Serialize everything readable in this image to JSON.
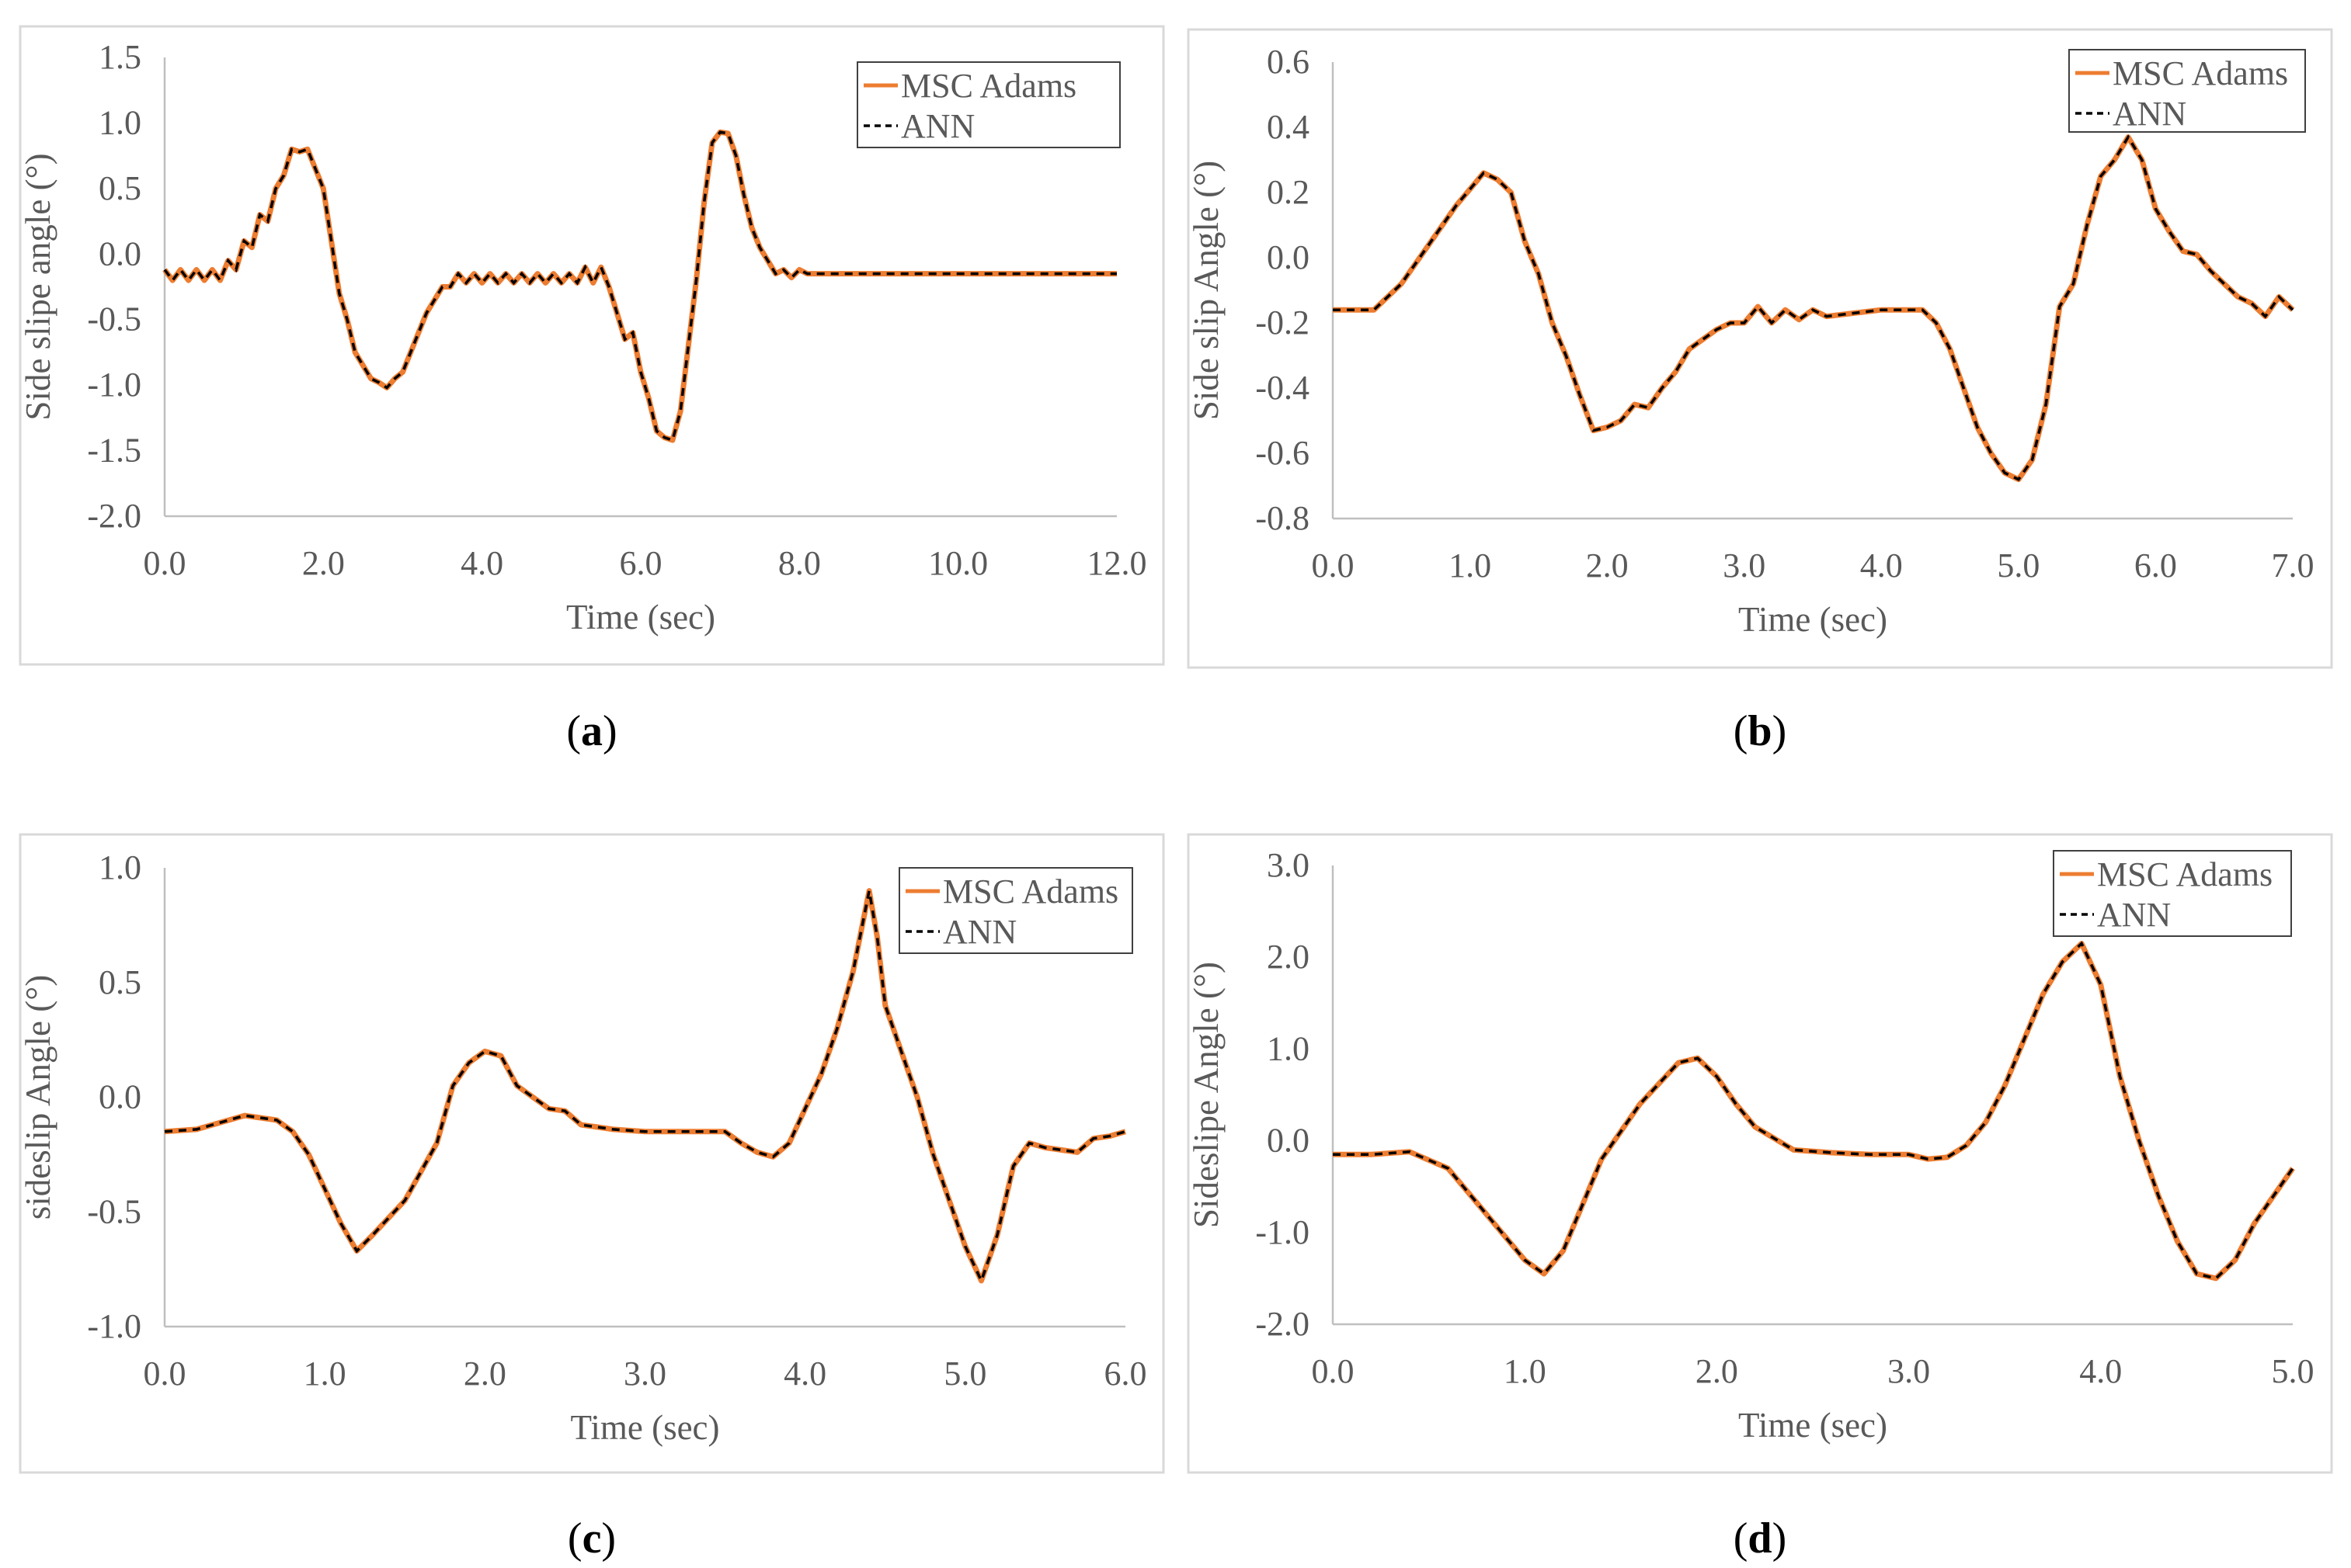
{
  "colors": {
    "adams": "#ED7D31",
    "ann": "#000000",
    "axis": "#BFBFBF",
    "frame": "#D9D9D9",
    "text": "#595959"
  },
  "panels": [
    {
      "caption": "(a)",
      "caption_letter": "a",
      "chart_data": {
        "type": "line",
        "xlabel": "Time (sec)",
        "ylabel": "Side slipe angle (°)",
        "xlim": [
          0,
          12
        ],
        "ylim": [
          -2,
          1.5
        ],
        "xticks": [
          "0.0",
          "2.0",
          "4.0",
          "6.0",
          "8.0",
          "10.0",
          "12.0"
        ],
        "yticks": [
          "-2.0",
          "-1.5",
          "-1.0",
          "-0.5",
          "0.0",
          "0.5",
          "1.0",
          "1.5"
        ],
        "legend_position": "top-right",
        "series": [
          {
            "name": "MSC Adams",
            "style": "solid"
          },
          {
            "name": "ANN",
            "style": "dashed"
          }
        ],
        "x": [
          0,
          0.1,
          0.2,
          0.3,
          0.4,
          0.5,
          0.6,
          0.7,
          0.8,
          0.9,
          1.0,
          1.1,
          1.2,
          1.3,
          1.4,
          1.5,
          1.6,
          1.7,
          1.8,
          1.9,
          2.0,
          2.1,
          2.2,
          2.3,
          2.4,
          2.5,
          2.6,
          2.7,
          2.8,
          2.9,
          3.0,
          3.1,
          3.2,
          3.3,
          3.4,
          3.5,
          3.6,
          3.7,
          3.8,
          3.9,
          4.0,
          4.1,
          4.2,
          4.3,
          4.4,
          4.5,
          4.6,
          4.7,
          4.8,
          4.9,
          5.0,
          5.1,
          5.2,
          5.3,
          5.4,
          5.5,
          5.6,
          5.7,
          5.8,
          5.9,
          6.0,
          6.1,
          6.2,
          6.3,
          6.4,
          6.5,
          6.6,
          6.7,
          6.8,
          6.9,
          7.0,
          7.1,
          7.2,
          7.3,
          7.4,
          7.5,
          7.6,
          7.7,
          7.8,
          7.9,
          8.0,
          8.1,
          8.2,
          8.3,
          8.4,
          8.5,
          8.6,
          8.7,
          8.8,
          8.9,
          9.0,
          9.5,
          10.0,
          10.5,
          11.0,
          11.5,
          12.0
        ],
        "y": [
          -0.12,
          -0.2,
          -0.12,
          -0.2,
          -0.12,
          -0.2,
          -0.12,
          -0.2,
          -0.05,
          -0.12,
          0.1,
          0.05,
          0.3,
          0.25,
          0.5,
          0.6,
          0.8,
          0.78,
          0.8,
          0.65,
          0.5,
          0.1,
          -0.3,
          -0.5,
          -0.75,
          -0.85,
          -0.95,
          -0.98,
          -1.02,
          -0.95,
          -0.9,
          -0.75,
          -0.6,
          -0.45,
          -0.35,
          -0.25,
          -0.25,
          -0.15,
          -0.22,
          -0.15,
          -0.22,
          -0.15,
          -0.22,
          -0.15,
          -0.22,
          -0.15,
          -0.22,
          -0.15,
          -0.22,
          -0.15,
          -0.22,
          -0.15,
          -0.22,
          -0.1,
          -0.22,
          -0.1,
          -0.25,
          -0.45,
          -0.65,
          -0.6,
          -0.9,
          -1.1,
          -1.35,
          -1.4,
          -1.42,
          -1.2,
          -0.7,
          -0.2,
          0.4,
          0.85,
          0.93,
          0.92,
          0.75,
          0.45,
          0.2,
          0.05,
          -0.05,
          -0.15,
          -0.12,
          -0.18,
          -0.12,
          -0.15,
          -0.15,
          -0.15,
          -0.15,
          -0.15,
          -0.15,
          -0.15,
          -0.15,
          -0.15,
          -0.15,
          -0.15,
          -0.15,
          -0.15,
          -0.15,
          -0.15,
          -0.15
        ]
      }
    },
    {
      "caption": "(b)",
      "caption_letter": "b",
      "chart_data": {
        "type": "line",
        "xlabel": "Time (sec)",
        "ylabel": "Side slip Angle (°)",
        "xlim": [
          0,
          7
        ],
        "ylim": [
          -0.8,
          0.6
        ],
        "xticks": [
          "0.0",
          "1.0",
          "2.0",
          "3.0",
          "4.0",
          "5.0",
          "6.0",
          "7.0"
        ],
        "yticks": [
          "-0.8",
          "-0.6",
          "-0.4",
          "-0.2",
          "0.0",
          "0.2",
          "0.4",
          "0.6"
        ],
        "legend_position": "top-right",
        "series": [
          {
            "name": "MSC Adams",
            "style": "solid"
          },
          {
            "name": "ANN",
            "style": "dashed"
          }
        ],
        "x": [
          0,
          0.3,
          0.5,
          0.7,
          0.9,
          1.1,
          1.2,
          1.3,
          1.4,
          1.5,
          1.6,
          1.7,
          1.8,
          1.9,
          2.0,
          2.1,
          2.2,
          2.3,
          2.4,
          2.5,
          2.6,
          2.7,
          2.8,
          2.9,
          3.0,
          3.1,
          3.2,
          3.3,
          3.4,
          3.5,
          3.6,
          3.8,
          4.0,
          4.2,
          4.3,
          4.4,
          4.5,
          4.6,
          4.7,
          4.8,
          4.9,
          5.0,
          5.1,
          5.2,
          5.3,
          5.4,
          5.5,
          5.6,
          5.7,
          5.8,
          5.9,
          6.0,
          6.1,
          6.2,
          6.3,
          6.4,
          6.5,
          6.6,
          6.7,
          6.8,
          6.9,
          7.0
        ],
        "y": [
          -0.16,
          -0.16,
          -0.08,
          0.04,
          0.16,
          0.26,
          0.24,
          0.2,
          0.05,
          -0.05,
          -0.2,
          -0.3,
          -0.42,
          -0.53,
          -0.52,
          -0.5,
          -0.45,
          -0.46,
          -0.4,
          -0.35,
          -0.28,
          -0.25,
          -0.22,
          -0.2,
          -0.2,
          -0.15,
          -0.2,
          -0.16,
          -0.19,
          -0.16,
          -0.18,
          -0.17,
          -0.16,
          -0.16,
          -0.16,
          -0.2,
          -0.28,
          -0.4,
          -0.52,
          -0.6,
          -0.66,
          -0.68,
          -0.62,
          -0.45,
          -0.15,
          -0.08,
          0.1,
          0.25,
          0.3,
          0.37,
          0.3,
          0.15,
          0.08,
          0.02,
          0.01,
          -0.04,
          -0.08,
          -0.12,
          -0.14,
          -0.18,
          -0.12,
          -0.16
        ]
      }
    },
    {
      "caption": "(c)",
      "caption_letter": "c",
      "chart_data": {
        "type": "line",
        "xlabel": "Time (sec)",
        "ylabel": "sideslip Angle (°)",
        "xlim": [
          0,
          6
        ],
        "ylim": [
          -1,
          1
        ],
        "xticks": [
          "0.0",
          "1.0",
          "2.0",
          "3.0",
          "4.0",
          "5.0",
          "6.0"
        ],
        "yticks": [
          "-1.0",
          "-0.5",
          "0.0",
          "0.5",
          "1.0"
        ],
        "legend_position": "top-right",
        "series": [
          {
            "name": "MSC Adams",
            "style": "solid"
          },
          {
            "name": "ANN",
            "style": "dashed"
          }
        ],
        "x": [
          0,
          0.2,
          0.5,
          0.7,
          0.8,
          0.9,
          1.0,
          1.1,
          1.2,
          1.3,
          1.5,
          1.7,
          1.8,
          1.9,
          2.0,
          2.1,
          2.2,
          2.4,
          2.5,
          2.6,
          2.7,
          2.8,
          3.0,
          3.3,
          3.5,
          3.6,
          3.7,
          3.8,
          3.9,
          4.0,
          4.1,
          4.2,
          4.3,
          4.4,
          4.45,
          4.5,
          4.6,
          4.7,
          4.8,
          4.9,
          5.0,
          5.1,
          5.2,
          5.3,
          5.4,
          5.5,
          5.7,
          5.8,
          5.9,
          6.0
        ],
        "y": [
          -0.15,
          -0.14,
          -0.08,
          -0.1,
          -0.15,
          -0.25,
          -0.4,
          -0.55,
          -0.67,
          -0.6,
          -0.45,
          -0.2,
          0.05,
          0.15,
          0.2,
          0.18,
          0.05,
          -0.05,
          -0.06,
          -0.12,
          -0.13,
          -0.14,
          -0.15,
          -0.15,
          -0.15,
          -0.2,
          -0.24,
          -0.26,
          -0.2,
          -0.05,
          0.1,
          0.3,
          0.55,
          0.9,
          0.7,
          0.4,
          0.2,
          0.0,
          -0.25,
          -0.45,
          -0.65,
          -0.8,
          -0.6,
          -0.3,
          -0.2,
          -0.22,
          -0.24,
          -0.18,
          -0.17,
          -0.15
        ]
      }
    },
    {
      "caption": "(d)",
      "caption_letter": "d",
      "chart_data": {
        "type": "line",
        "xlabel": "Time (sec)",
        "ylabel": "Sideslipe Angle (°)",
        "xlim": [
          0,
          5
        ],
        "ylim": [
          -2,
          3
        ],
        "xticks": [
          "0.0",
          "1.0",
          "2.0",
          "3.0",
          "4.0",
          "5.0"
        ],
        "yticks": [
          "-2.0",
          "-1.0",
          "0.0",
          "1.0",
          "2.0",
          "3.0"
        ],
        "legend_position": "top-right",
        "series": [
          {
            "name": "MSC Adams",
            "style": "solid"
          },
          {
            "name": "ANN",
            "style": "dashed"
          }
        ],
        "x": [
          0,
          0.2,
          0.4,
          0.6,
          0.8,
          1.0,
          1.1,
          1.2,
          1.3,
          1.4,
          1.6,
          1.8,
          1.9,
          2.0,
          2.1,
          2.2,
          2.4,
          2.6,
          2.8,
          3.0,
          3.1,
          3.2,
          3.3,
          3.4,
          3.5,
          3.6,
          3.7,
          3.8,
          3.9,
          4.0,
          4.1,
          4.2,
          4.3,
          4.4,
          4.5,
          4.6,
          4.7,
          4.8,
          5.0
        ],
        "y": [
          -0.15,
          -0.15,
          -0.12,
          -0.3,
          -0.8,
          -1.3,
          -1.45,
          -1.2,
          -0.7,
          -0.2,
          0.4,
          0.85,
          0.9,
          0.7,
          0.4,
          0.15,
          -0.1,
          -0.13,
          -0.15,
          -0.15,
          -0.2,
          -0.18,
          -0.05,
          0.2,
          0.6,
          1.1,
          1.6,
          1.95,
          2.15,
          1.7,
          0.7,
          0.0,
          -0.6,
          -1.1,
          -1.45,
          -1.5,
          -1.3,
          -0.9,
          -0.3
        ]
      }
    }
  ]
}
